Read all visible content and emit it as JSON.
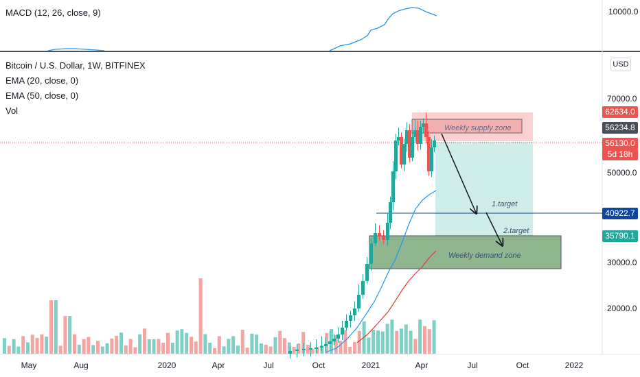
{
  "macd": {
    "label": "MACD (12, 26, close, 9)",
    "axis_label": "10000.0"
  },
  "header": {
    "title": "Bitcoin / U.S. Dollar, 1W, BITFINEX",
    "ema20_label": "EMA (20, close, 0)",
    "ema50_label": "EMA (50, close, 0)",
    "vol_label": "Vol",
    "currency_button": "USD"
  },
  "price_axis": {
    "labels": [
      "70000.0",
      "50000.0",
      "30000.0",
      "20000.0"
    ]
  },
  "price_tags": {
    "high": "62634.0",
    "cursor": "56234.8",
    "last": "56130.0",
    "countdown": "5d 18h",
    "target1": "40922.7",
    "demand": "35790.1"
  },
  "time_axis": {
    "labels": [
      "May",
      "Aug",
      "2020",
      "Apr",
      "Jul",
      "Oct",
      "2021",
      "Apr",
      "Jul",
      "Oct",
      "2022"
    ]
  },
  "annotations": {
    "supply_zone": "Weekly supply zone",
    "demand_zone": "Weekly demand zone",
    "target1": "1.target",
    "target2": "2.target"
  },
  "colors": {
    "up": "#26a69a",
    "down": "#ef5350",
    "up_volume": "#7fcfc5",
    "down_volume": "#f4a4a2",
    "ema20": "#2196f3",
    "ema50": "#e53935",
    "supply_fill": "#f8c9c9",
    "demand_fill": "#6a9e6a",
    "target_fill": "#c9ebe7",
    "target1_tag": "#0d47a1",
    "demand_tag": "#26a69a",
    "cursor_tag": "#4a4e59",
    "high_tag": "#ef5350"
  }
}
